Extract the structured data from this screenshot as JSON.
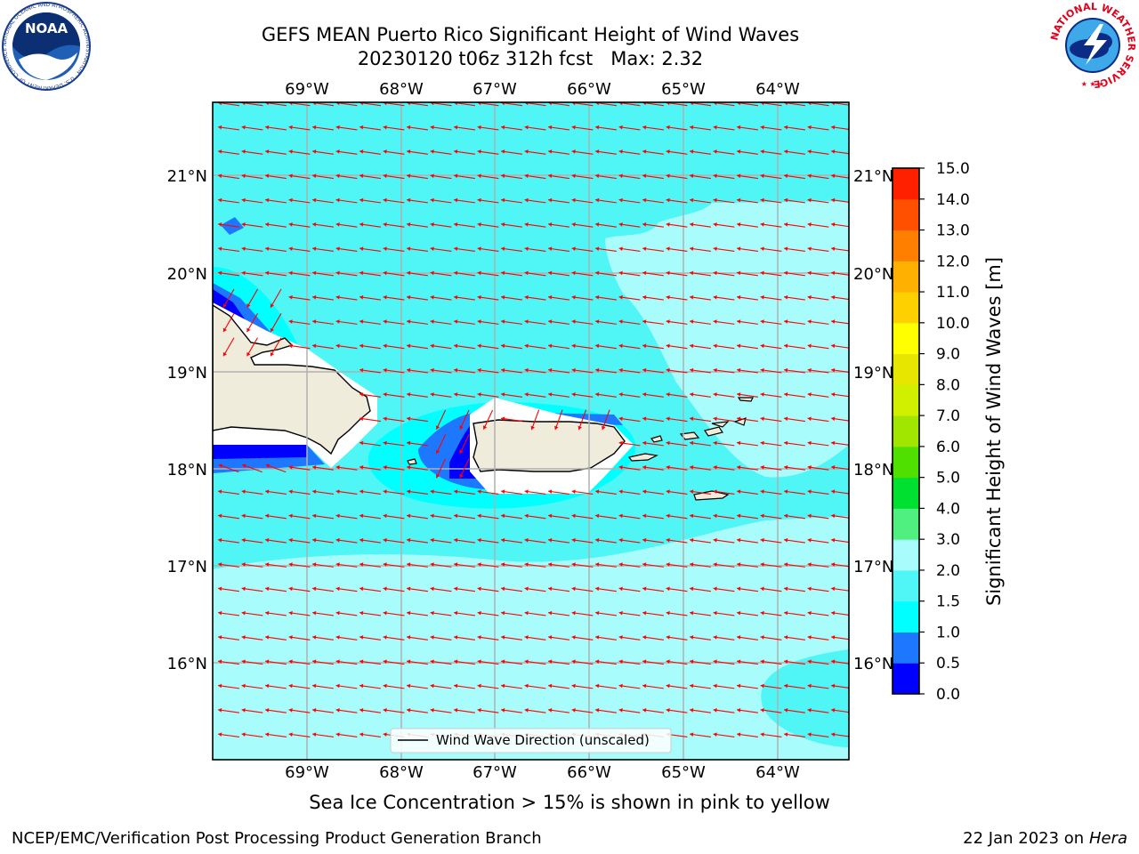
{
  "title": {
    "line1": "GEFS MEAN Puerto Rico Significant Height of Wind Waves",
    "line2": "20230120 t06z 312h fcst   Max: 2.32"
  },
  "logos": {
    "noaa_text": "NOAA",
    "noaa_ring": "NATIONAL OCEANIC AND ATMOSPHERIC ADMINISTRATION · U.S. DEPARTMENT OF COMMERCE",
    "nws_ring": "NATIONAL WEATHER SERVICE"
  },
  "map": {
    "lon_labels": [
      "69°W",
      "68°W",
      "67°W",
      "66°W",
      "65°W",
      "64°W"
    ],
    "lat_labels": [
      "21°N",
      "20°N",
      "19°N",
      "18°N",
      "17°N",
      "16°N"
    ],
    "legend_label": "Wind Wave Direction (unscaled)",
    "arrow_color": "#ff0000",
    "land_color": "#efecdc"
  },
  "colorbar": {
    "label": "Significant Height of Wind Waves [m]",
    "ticks": [
      "15.0",
      "14.0",
      "13.0",
      "12.0",
      "11.0",
      "10.0",
      "9.0",
      "8.0",
      "7.0",
      "6.0",
      "5.0",
      "4.0",
      "3.0",
      "2.0",
      "1.5",
      "1.0",
      "0.5",
      "0.0"
    ],
    "colors_bottom_to_top": [
      "#0000ff",
      "#1e78ff",
      "#00ffff",
      "#50f5f5",
      "#a8fcfc",
      "#50f080",
      "#00e030",
      "#50e000",
      "#a0e600",
      "#d0f000",
      "#e6e600",
      "#ffff00",
      "#ffd000",
      "#ffb000",
      "#ff8000",
      "#ff5000",
      "#ff2000"
    ]
  },
  "notes": {
    "sea_ice": "Sea Ice Concentration > 15% is shown in pink to yellow"
  },
  "footer": {
    "left": "NCEP/EMC/Verification Post Processing Product Generation Branch",
    "right_prefix": "22 Jan 2023 on ",
    "right_machine": "Hera"
  }
}
